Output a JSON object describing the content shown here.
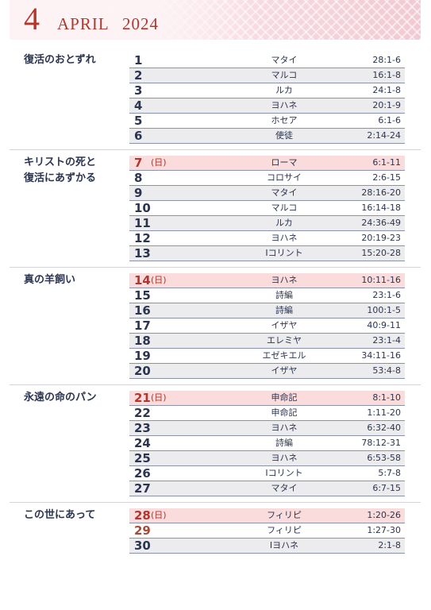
{
  "header": {
    "month_number": "4",
    "month_name": "APRIL",
    "year": "2024"
  },
  "sections": [
    {
      "title": [
        "復活のおとずれ"
      ],
      "rows": [
        {
          "day": 1,
          "book": "マタイ",
          "ref": "28:1-6"
        },
        {
          "day": 2,
          "book": "マルコ",
          "ref": "16:1-8"
        },
        {
          "day": 3,
          "book": "ルカ",
          "ref": "24:1-8"
        },
        {
          "day": 4,
          "book": "ヨハネ",
          "ref": "20:1-9"
        },
        {
          "day": 5,
          "book": "ホセア",
          "ref": "6:1-6"
        },
        {
          "day": 6,
          "book": "使徒",
          "ref": "2:14-24"
        }
      ]
    },
    {
      "title": [
        "キリストの死と",
        "復活にあずかる"
      ],
      "rows": [
        {
          "day": 7,
          "weekday": "(日)",
          "color": "#b2362c",
          "book": "ローマ",
          "ref": "6:1-11"
        },
        {
          "day": 8,
          "book": "コロサイ",
          "ref": "2:6-15"
        },
        {
          "day": 9,
          "book": "マタイ",
          "ref": "28:16-20"
        },
        {
          "day": 10,
          "book": "マルコ",
          "ref": "16:14-18"
        },
        {
          "day": 11,
          "book": "ルカ",
          "ref": "24:36-49"
        },
        {
          "day": 12,
          "book": "ヨハネ",
          "ref": "20:19-23"
        },
        {
          "day": 13,
          "book": "Ⅰコリント",
          "ref": "15:20-28"
        }
      ]
    },
    {
      "title": [
        "真の羊飼い"
      ],
      "rows": [
        {
          "day": 14,
          "weekday": "(日)",
          "color": "#b2362c",
          "book": "ヨハネ",
          "ref": "10:11-16"
        },
        {
          "day": 15,
          "book": "詩編",
          "ref": "23:1-6"
        },
        {
          "day": 16,
          "book": "詩編",
          "ref": "100:1-5"
        },
        {
          "day": 17,
          "book": "イザヤ",
          "ref": "40:9-11"
        },
        {
          "day": 18,
          "book": "エレミヤ",
          "ref": "23:1-4"
        },
        {
          "day": 19,
          "book": "エゼキエル",
          "ref": "34:11-16"
        },
        {
          "day": 20,
          "book": "イザヤ",
          "ref": "53:4-8"
        }
      ]
    },
    {
      "title": [
        "永遠の命のパン"
      ],
      "rows": [
        {
          "day": 21,
          "weekday": "(日)",
          "color": "#b2362c",
          "book": "申命記",
          "ref": "8:1-10"
        },
        {
          "day": 22,
          "book": "申命記",
          "ref": "1:11-20"
        },
        {
          "day": 23,
          "book": "ヨハネ",
          "ref": "6:32-40"
        },
        {
          "day": 24,
          "book": "詩編",
          "ref": "78:12-31"
        },
        {
          "day": 25,
          "book": "ヨハネ",
          "ref": "6:53-58"
        },
        {
          "day": 26,
          "book": "Ⅰコリント",
          "ref": "5:7-8"
        },
        {
          "day": 27,
          "book": "マタイ",
          "ref": "6:7-15"
        }
      ]
    },
    {
      "title": [
        "この世にあって"
      ],
      "rows": [
        {
          "day": 28,
          "weekday": "(日)",
          "color": "#b2362c",
          "book": "フィリピ",
          "ref": "1:20-26"
        },
        {
          "day": 29,
          "color": "#a84a38",
          "book": "フィリピ",
          "ref": "1:27-30"
        },
        {
          "day": 30,
          "book": "Ⅰヨハネ",
          "ref": "2:1-8"
        }
      ]
    }
  ]
}
